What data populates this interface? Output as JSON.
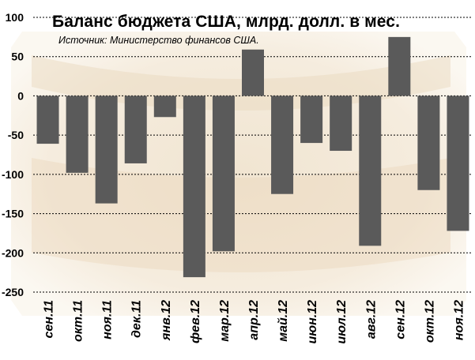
{
  "chart_data": {
    "type": "bar",
    "title": "Баланс бюджета США, млрд. долл. в мес.",
    "subtitle": "Источник: Министерство финансов США.",
    "categories": [
      "сен.11",
      "окт.11",
      "ноя.11",
      "дек.11",
      "янв.12",
      "фев.12",
      "мар.12",
      "апр.12",
      "май.12",
      "июн.12",
      "июл.12",
      "авг.12",
      "сен.12",
      "окт.12",
      "ноя.12"
    ],
    "values": [
      -61,
      -98,
      -137,
      -86,
      -27,
      -231,
      -198,
      59,
      -125,
      -60,
      -70,
      -191,
      75,
      -120,
      -172
    ],
    "ylim": [
      -250,
      100
    ],
    "yticks": [
      100,
      50,
      0,
      -50,
      -100,
      -150,
      -200,
      -250
    ],
    "grid": true,
    "legend": "none",
    "bar_color": "#5a5a5a",
    "grid_color": "#000000"
  }
}
